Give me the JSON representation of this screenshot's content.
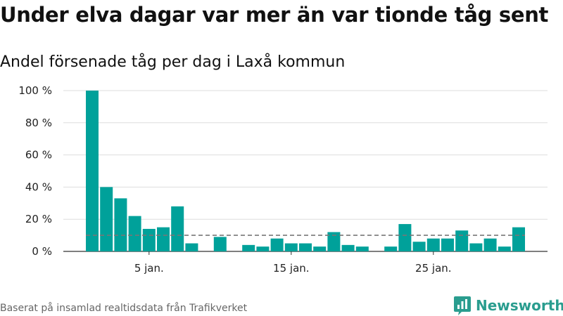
{
  "title": "Under elva dagar var mer än var tionde tåg sent",
  "subtitle": "Andel försenade tåg per dag i Laxå kommun",
  "source": "Baserat på insamlad realtidsdata från Trafikverket",
  "logo_text": "Newsworthy",
  "logo_icon": "newsworthy-chart-icon",
  "colors": {
    "bar": "#00a19a",
    "reference_line": "#777777",
    "grid": "#dddddd",
    "logo": "#2a9d8f"
  },
  "chart_data": {
    "type": "bar",
    "x": [
      1,
      2,
      3,
      4,
      5,
      6,
      7,
      8,
      9,
      10,
      11,
      12,
      13,
      14,
      15,
      16,
      17,
      18,
      19,
      20,
      21,
      22,
      23,
      24,
      25,
      26,
      27,
      28,
      29,
      30,
      31
    ],
    "values": [
      100,
      40,
      33,
      22,
      14,
      15,
      28,
      5,
      null,
      9,
      null,
      4,
      3,
      8,
      5,
      5,
      3,
      12,
      4,
      3,
      null,
      3,
      17,
      6,
      8,
      8,
      13,
      5,
      8,
      3,
      15
    ],
    "xticks": [
      {
        "x": 5,
        "label": "5 jan."
      },
      {
        "x": 15,
        "label": "15 jan."
      },
      {
        "x": 25,
        "label": "25 jan."
      }
    ],
    "yticks": [
      {
        "value": 0,
        "label": "0 %"
      },
      {
        "value": 20,
        "label": "20 %"
      },
      {
        "value": 40,
        "label": "40 %"
      },
      {
        "value": 60,
        "label": "60 %"
      },
      {
        "value": 80,
        "label": "80 %"
      },
      {
        "value": 100,
        "label": "100 %"
      }
    ],
    "ylim": [
      0,
      100
    ],
    "reference_line": 10,
    "grid": true
  }
}
